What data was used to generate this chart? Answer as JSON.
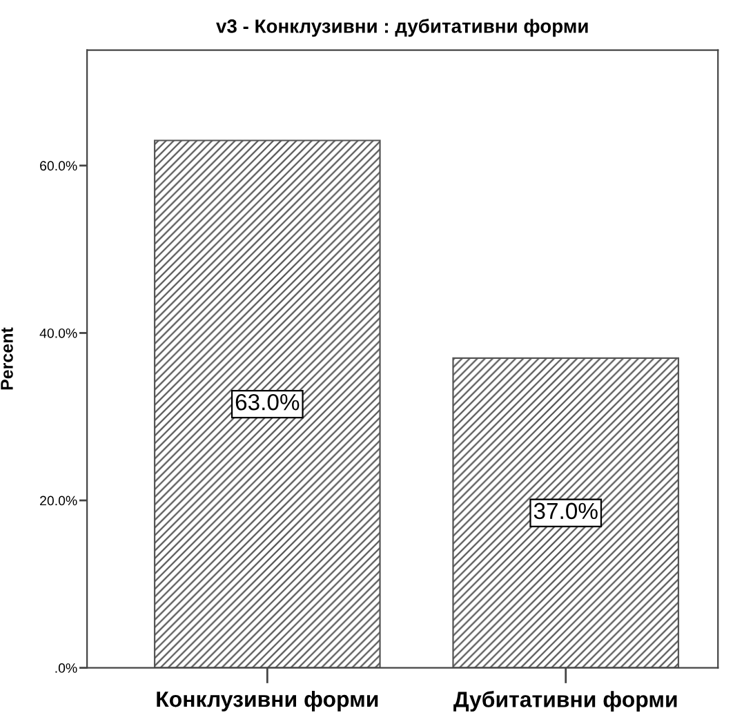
{
  "chart_data": {
    "type": "bar",
    "title": "v3 - Конклузивни : дубитативни форми",
    "ylabel": "Percent",
    "categories": [
      "Конклузивни форми",
      "Дубитативни форми"
    ],
    "values": [
      63.0,
      37.0
    ],
    "value_labels": [
      "63.0%",
      "37.0%"
    ],
    "color": "#555555",
    "ylim": [
      0,
      73.8
    ],
    "yticks": [
      {
        "value": 0,
        "label": ".0%"
      },
      {
        "value": 20,
        "label": "20.0%"
      },
      {
        "value": 40,
        "label": "40.0%"
      },
      {
        "value": 60,
        "label": "60.0%"
      }
    ],
    "grid": false,
    "legend": false
  }
}
